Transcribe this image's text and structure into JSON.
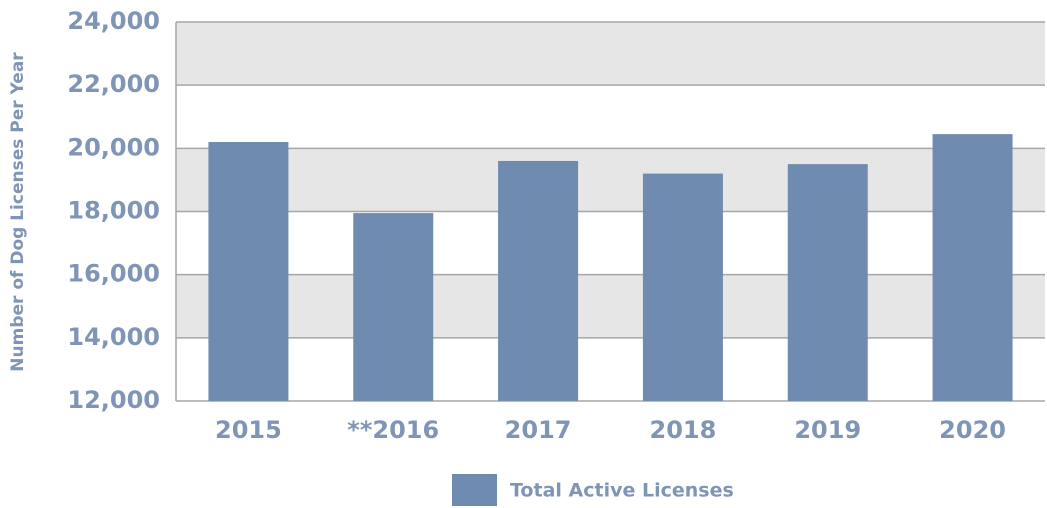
{
  "chart_data": {
    "type": "bar",
    "categories": [
      "2015",
      "**2016",
      "2017",
      "2018",
      "2019",
      "2020"
    ],
    "series": [
      {
        "name": "Total Active Licenses",
        "color": "#6f8bb0",
        "values": [
          20200,
          17950,
          19600,
          19200,
          19500,
          20450
        ]
      }
    ],
    "y_label": "Number of Dog Licenses Per Year",
    "ylim": [
      12000,
      24000
    ],
    "yticks": [
      {
        "value": 12000,
        "label": "12,000"
      },
      {
        "value": 14000,
        "label": "14,000"
      },
      {
        "value": 16000,
        "label": "16,000"
      },
      {
        "value": 18000,
        "label": "18,000"
      },
      {
        "value": 20000,
        "label": "20,000"
      },
      {
        "value": 22000,
        "label": "22,000"
      },
      {
        "value": 24000,
        "label": "24,000"
      }
    ],
    "grid": true,
    "band_color": "#e6e6e6",
    "legend": "bottom"
  }
}
